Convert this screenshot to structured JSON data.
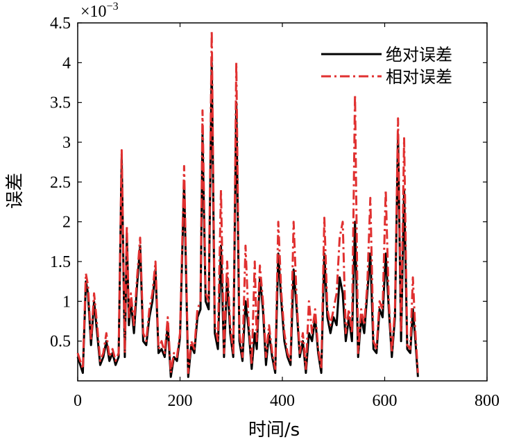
{
  "chart_data": {
    "type": "line",
    "xlabel": "时间/s",
    "ylabel": "误差",
    "y_multiplier_label": "×10",
    "y_multiplier_exp": "−3",
    "xlim": [
      0,
      800
    ],
    "ylim": [
      0,
      4.5
    ],
    "x_ticks": [
      0,
      200,
      400,
      600,
      800
    ],
    "x_tick_labels": [
      "0",
      "200",
      "400",
      "600",
      "800"
    ],
    "y_ticks": [
      0.5,
      1,
      1.5,
      2,
      2.5,
      3,
      3.5,
      4,
      4.5
    ],
    "y_tick_labels": [
      "0.5",
      "1",
      "1.5",
      "2",
      "2.5",
      "3",
      "3.5",
      "4",
      "4.5"
    ],
    "grid": false,
    "legend_position": "top-right",
    "colors": {
      "absolute": "#000000",
      "relative": "#e03030"
    },
    "x": [
      0,
      10,
      16,
      20,
      26,
      32,
      38,
      44,
      50,
      56,
      62,
      68,
      74,
      80,
      86,
      92,
      96,
      100,
      104,
      110,
      116,
      122,
      128,
      134,
      140,
      146,
      152,
      158,
      164,
      170,
      176,
      182,
      188,
      194,
      200,
      208,
      216,
      222,
      228,
      234,
      240,
      244,
      250,
      256,
      262,
      268,
      274,
      280,
      286,
      292,
      298,
      304,
      310,
      316,
      322,
      328,
      334,
      340,
      346,
      350,
      356,
      362,
      368,
      374,
      380,
      386,
      392,
      398,
      404,
      410,
      416,
      422,
      428,
      434,
      440,
      446,
      452,
      458,
      464,
      470,
      476,
      482,
      488,
      494,
      500,
      506,
      512,
      518,
      524,
      530,
      536,
      542,
      548,
      554,
      560,
      566,
      572,
      578,
      584,
      590,
      596,
      602,
      608,
      614,
      620,
      626,
      632,
      638,
      644,
      650,
      655,
      660,
      665
    ],
    "series": [
      {
        "name": "绝对误差",
        "values": [
          0.3,
          0.1,
          1.25,
          1.1,
          0.45,
          1.0,
          0.6,
          0.2,
          0.3,
          0.5,
          0.25,
          0.35,
          0.2,
          0.3,
          2.82,
          0.3,
          1.85,
          0.7,
          1.0,
          0.6,
          1.2,
          1.7,
          0.5,
          0.45,
          0.8,
          1.0,
          1.4,
          0.35,
          0.4,
          0.3,
          0.7,
          0.05,
          0.3,
          0.25,
          0.55,
          2.5,
          0.05,
          0.45,
          0.35,
          0.8,
          0.9,
          3.1,
          1.0,
          0.9,
          4.0,
          0.6,
          0.4,
          1.7,
          0.3,
          1.3,
          0.6,
          0.3,
          3.5,
          0.5,
          0.25,
          1.0,
          0.65,
          0.15,
          0.6,
          0.4,
          1.3,
          0.9,
          0.2,
          0.6,
          0.3,
          0.1,
          1.6,
          1.0,
          0.5,
          0.3,
          0.2,
          1.4,
          0.9,
          0.3,
          0.5,
          0.1,
          0.6,
          0.5,
          0.8,
          0.35,
          0.1,
          1.6,
          0.8,
          0.6,
          0.8,
          0.7,
          1.3,
          1.1,
          0.5,
          0.8,
          0.5,
          2.0,
          0.3,
          0.8,
          0.6,
          1.1,
          1.6,
          0.4,
          0.35,
          0.9,
          0.8,
          1.6,
          0.9,
          0.3,
          0.8,
          3.1,
          0.5,
          2.4,
          0.4,
          0.35,
          0.9,
          0.5,
          0.05
        ]
      },
      {
        "name": "相对误差",
        "values": [
          0.35,
          0.15,
          1.35,
          1.2,
          0.5,
          1.1,
          0.7,
          0.25,
          0.35,
          0.6,
          0.3,
          0.4,
          0.25,
          0.35,
          2.9,
          0.35,
          1.95,
          0.8,
          1.1,
          0.7,
          1.3,
          1.8,
          0.6,
          0.5,
          0.9,
          1.1,
          1.5,
          0.4,
          0.5,
          0.35,
          0.8,
          0.1,
          0.35,
          0.3,
          0.6,
          2.7,
          0.1,
          0.5,
          0.4,
          0.9,
          1.0,
          3.4,
          1.1,
          1.0,
          4.4,
          0.7,
          0.5,
          2.4,
          0.35,
          1.5,
          0.7,
          0.35,
          4.0,
          0.6,
          0.3,
          1.7,
          0.75,
          0.2,
          1.5,
          0.5,
          1.45,
          1.0,
          0.3,
          0.7,
          0.35,
          0.15,
          2.0,
          1.1,
          0.6,
          0.35,
          0.25,
          2.0,
          1.0,
          0.35,
          0.6,
          0.15,
          1.0,
          0.6,
          0.9,
          0.4,
          0.15,
          2.05,
          0.9,
          0.7,
          0.9,
          1.1,
          1.8,
          2.0,
          0.6,
          0.9,
          0.6,
          3.6,
          0.35,
          0.9,
          0.7,
          1.2,
          2.3,
          0.5,
          0.4,
          1.0,
          0.9,
          2.4,
          1.0,
          0.35,
          0.9,
          3.3,
          0.6,
          3.05,
          0.45,
          0.4,
          1.3,
          0.6,
          0.1
        ]
      }
    ]
  }
}
